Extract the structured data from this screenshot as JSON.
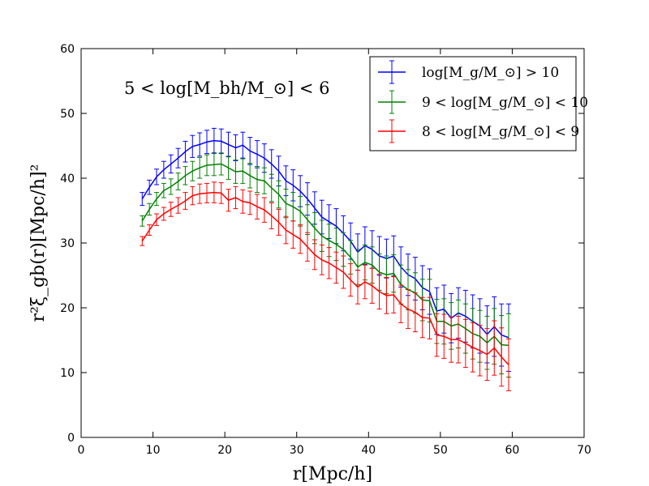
{
  "chart_data": {
    "type": "line",
    "title": "",
    "annotation": "5 < log[M_bh/M_⊙] < 6",
    "xlabel": "r[Mpc/h]",
    "ylabel": "r²ξ_gb(r)[Mpc/h]²",
    "xlim": [
      0,
      70
    ],
    "ylim": [
      0,
      60
    ],
    "xticks": [
      "0",
      "10",
      "20",
      "30",
      "40",
      "50",
      "60",
      "70"
    ],
    "yticks": [
      "0",
      "10",
      "20",
      "30",
      "40",
      "50",
      "60"
    ],
    "grid": false,
    "legend_position": "top-right",
    "x": [
      8.5,
      9.5,
      10.5,
      11.5,
      12.5,
      13.5,
      14.5,
      15.5,
      16.5,
      17.5,
      18.5,
      19.5,
      20.5,
      21.5,
      22.5,
      23.5,
      24.5,
      25.5,
      26.5,
      27.5,
      28.5,
      29.5,
      30.5,
      31.5,
      32.5,
      33.5,
      34.5,
      35.5,
      36.5,
      37.5,
      38.5,
      39.5,
      40.5,
      41.5,
      42.5,
      43.5,
      44.5,
      45.5,
      46.5,
      47.5,
      48.5,
      49.5,
      50.5,
      51.5,
      52.5,
      53.5,
      54.5,
      55.5,
      56.5,
      57.5,
      58.5,
      59.5
    ],
    "series": [
      {
        "name": "log[M_g/M_⊙] > 10",
        "color": "#0000ff",
        "values": [
          36.8,
          38.6,
          40.2,
          41.3,
          42.2,
          43.1,
          44.1,
          44.9,
          45.2,
          45.6,
          45.8,
          45.7,
          45.2,
          44.7,
          45.1,
          44.2,
          43.7,
          43.1,
          42.2,
          41.1,
          39.6,
          38.9,
          38.0,
          36.8,
          35.4,
          34.0,
          33.3,
          32.6,
          31.5,
          30.3,
          28.6,
          29.6,
          29.0,
          28.0,
          27.6,
          28.0,
          26.3,
          25.1,
          24.5,
          23.1,
          22.5,
          19.5,
          19.8,
          18.4,
          19.2,
          18.7,
          17.9,
          17.2,
          15.9,
          17.1,
          15.8,
          15.4
        ],
        "errors": [
          1.0,
          1.1,
          1.2,
          1.3,
          1.4,
          1.5,
          1.6,
          1.7,
          1.8,
          1.8,
          1.9,
          1.9,
          1.9,
          2.0,
          2.0,
          2.1,
          2.1,
          2.2,
          2.2,
          2.3,
          2.3,
          2.4,
          2.4,
          2.5,
          2.5,
          2.6,
          2.6,
          2.7,
          2.7,
          2.8,
          2.8,
          2.9,
          2.9,
          3.0,
          3.0,
          3.1,
          3.1,
          3.2,
          3.3,
          3.4,
          3.5,
          3.6,
          3.7,
          3.8,
          3.9,
          4.0,
          4.1,
          4.2,
          4.4,
          4.6,
          4.8,
          5.2
        ]
      },
      {
        "name": "9 < log[M_g/M_⊙] < 10",
        "color": "#008000",
        "values": [
          33.4,
          35.2,
          36.8,
          38.1,
          38.7,
          39.5,
          40.4,
          41.1,
          41.6,
          42.0,
          42.1,
          42.2,
          41.6,
          41.0,
          41.1,
          40.4,
          39.8,
          39.6,
          38.5,
          37.5,
          36.1,
          35.6,
          34.9,
          33.6,
          32.3,
          31.1,
          30.4,
          29.8,
          29.0,
          27.8,
          26.3,
          27.0,
          26.6,
          25.5,
          25.1,
          25.3,
          23.6,
          22.8,
          22.3,
          21.2,
          21.1,
          17.9,
          17.9,
          17.2,
          17.5,
          16.8,
          16.0,
          15.6,
          14.6,
          15.6,
          14.3,
          14.2
        ],
        "errors": [
          0.8,
          0.9,
          1.0,
          1.1,
          1.2,
          1.3,
          1.4,
          1.5,
          1.6,
          1.6,
          1.7,
          1.7,
          1.8,
          1.8,
          1.9,
          1.9,
          2.0,
          2.0,
          2.1,
          2.1,
          2.2,
          2.2,
          2.3,
          2.3,
          2.4,
          2.4,
          2.5,
          2.5,
          2.6,
          2.6,
          2.7,
          2.7,
          2.8,
          2.8,
          2.9,
          2.9,
          3.0,
          3.1,
          3.1,
          3.2,
          3.3,
          3.4,
          3.5,
          3.6,
          3.7,
          3.8,
          3.9,
          4.0,
          4.1,
          4.3,
          4.5,
          4.9
        ]
      },
      {
        "name": "8 < log[M_g/M_⊙] < 9",
        "color": "#ff0000",
        "values": [
          30.3,
          32.0,
          33.6,
          34.5,
          35.2,
          35.8,
          36.5,
          37.3,
          37.6,
          37.7,
          37.8,
          37.7,
          36.6,
          37.0,
          36.4,
          36.2,
          35.6,
          35.1,
          34.2,
          33.2,
          32.0,
          31.3,
          30.6,
          29.4,
          28.2,
          27.4,
          26.9,
          26.2,
          25.5,
          24.3,
          23.2,
          24.0,
          23.4,
          22.5,
          21.9,
          22.0,
          20.6,
          19.8,
          19.3,
          18.5,
          18.4,
          15.8,
          15.6,
          15.1,
          15.1,
          14.5,
          13.9,
          13.4,
          12.8,
          13.8,
          12.4,
          11.2
        ],
        "errors": [
          0.7,
          0.8,
          0.9,
          1.0,
          1.1,
          1.2,
          1.3,
          1.4,
          1.5,
          1.5,
          1.6,
          1.6,
          1.7,
          1.7,
          1.8,
          1.8,
          1.9,
          1.9,
          2.0,
          2.0,
          2.1,
          2.1,
          2.2,
          2.2,
          2.3,
          2.3,
          2.4,
          2.4,
          2.5,
          2.5,
          2.6,
          2.6,
          2.7,
          2.7,
          2.8,
          2.8,
          2.9,
          3.0,
          3.0,
          3.1,
          3.2,
          3.3,
          3.4,
          3.5,
          3.6,
          3.7,
          3.8,
          3.9,
          4.0,
          4.2,
          4.5,
          4.0
        ]
      }
    ]
  }
}
